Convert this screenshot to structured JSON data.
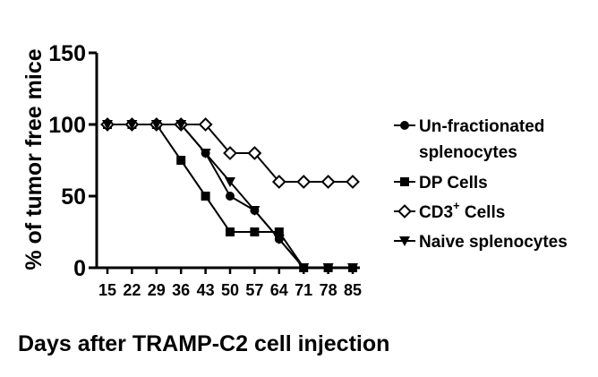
{
  "chart_data": {
    "type": "line",
    "xlabel": "Days after TRAMP-C2 cell injection",
    "ylabel": "% of tumor free mice",
    "x": [
      15,
      22,
      29,
      36,
      43,
      50,
      57,
      64,
      71,
      78,
      85
    ],
    "x_tick_labels": [
      "15",
      "22",
      "29",
      "36",
      "43",
      "50",
      "57",
      "64",
      "71",
      "78",
      "85"
    ],
    "y_ticks": [
      0,
      50,
      100,
      150
    ],
    "y_tick_labels": [
      "0",
      "50",
      "100",
      "150"
    ],
    "ylim": [
      0,
      150
    ],
    "legend_position": "right",
    "grid": false,
    "series": [
      {
        "name": "Un-fractionated splenocytes",
        "legend_lines": [
          "Un-fractionated",
          "splenocytes"
        ],
        "marker": "circle",
        "x": [
          15,
          22,
          29,
          36,
          43,
          50,
          57,
          64,
          71,
          78,
          85
        ],
        "y": [
          100,
          100,
          100,
          100,
          80,
          50,
          40,
          20,
          0,
          0,
          0
        ]
      },
      {
        "name": "DP Cells",
        "legend_lines": [
          "DP Cells"
        ],
        "marker": "square",
        "x": [
          15,
          22,
          29,
          36,
          43,
          50,
          57,
          64,
          71,
          78,
          85
        ],
        "y": [
          100,
          100,
          100,
          75,
          50,
          25,
          25,
          25,
          0,
          0,
          0
        ]
      },
      {
        "name": "CD3+ Cells",
        "legend_lines": [
          "CD3",
          "+",
          " Cells"
        ],
        "marker": "diamond",
        "x": [
          15,
          22,
          29,
          36,
          43,
          50,
          57,
          64,
          71,
          78,
          85
        ],
        "y": [
          100,
          100,
          100,
          100,
          100,
          80,
          80,
          60,
          60,
          60,
          60
        ]
      },
      {
        "name": "Naive splenocytes",
        "legend_lines": [
          "Naive splenocytes"
        ],
        "marker": "triangle-down",
        "x": [
          15,
          22,
          29,
          36,
          43,
          50,
          57,
          64,
          71,
          78,
          85
        ],
        "y": [
          100,
          100,
          100,
          100,
          80,
          60,
          40,
          20,
          0,
          0,
          0
        ]
      }
    ]
  }
}
